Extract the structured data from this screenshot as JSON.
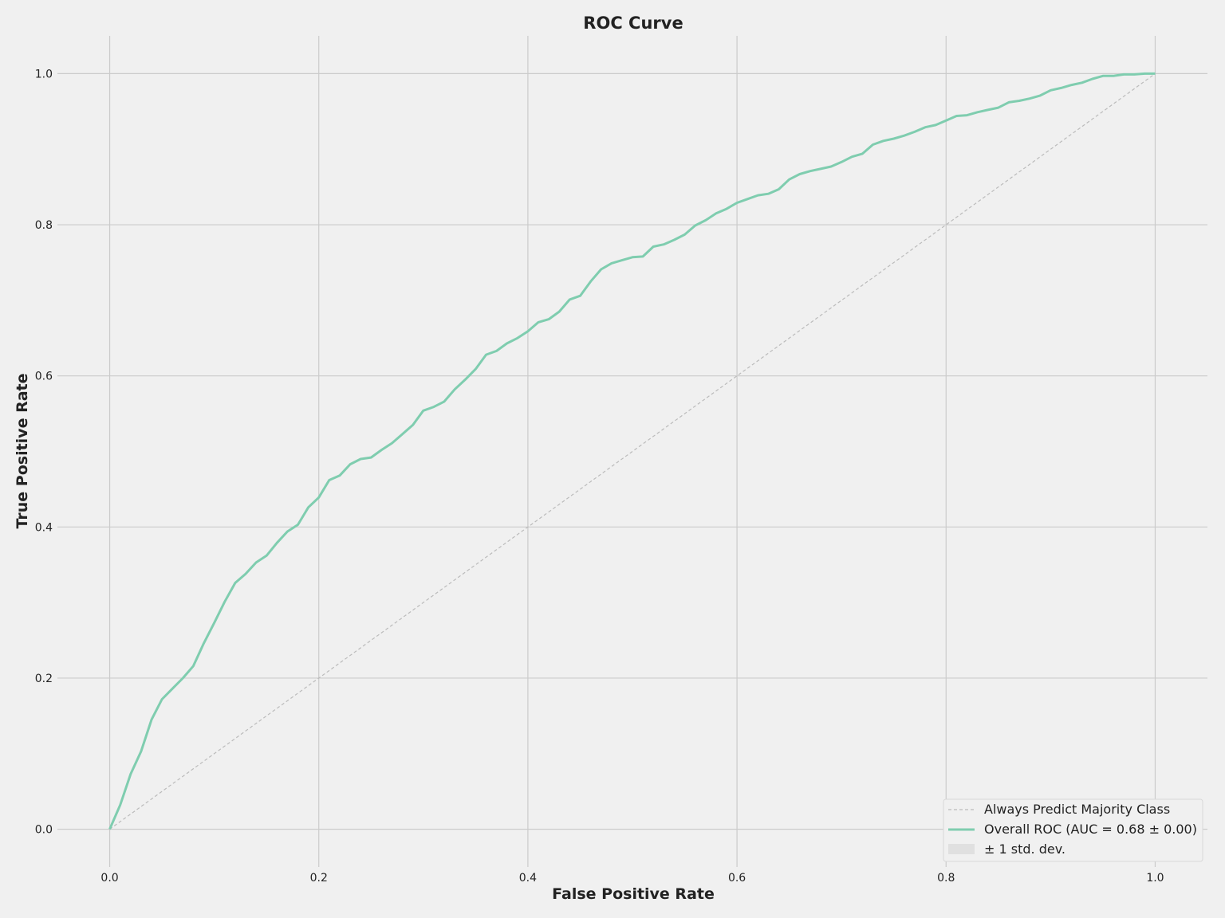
{
  "chart_data": {
    "type": "line",
    "title": "ROC Curve",
    "xlabel": "False Positive Rate",
    "ylabel": "True Positive Rate",
    "xlim": [
      -0.05,
      1.05
    ],
    "ylim": [
      -0.05,
      1.05
    ],
    "xticks": [
      0.0,
      0.2,
      0.4,
      0.6,
      0.8,
      1.0
    ],
    "yticks": [
      0.0,
      0.2,
      0.4,
      0.6,
      0.8,
      1.0
    ],
    "xtick_labels": [
      "0.0",
      "0.2",
      "0.4",
      "0.6",
      "0.8",
      "1.0"
    ],
    "ytick_labels": [
      "0.0",
      "0.2",
      "0.4",
      "0.6",
      "0.8",
      "1.0"
    ],
    "grid": true,
    "legend": {
      "placement": "lower-right"
    },
    "series": [
      {
        "name": "Always Predict Majority Class",
        "style": "dashed",
        "color": "#bbbbbb",
        "x": [
          0,
          1
        ],
        "y": [
          0,
          1
        ]
      },
      {
        "name": "Overall ROC (AUC = 0.68 ± 0.00)",
        "style": "solid",
        "color": "#7fcdaf",
        "x": [
          0.0,
          0.01,
          0.02,
          0.03,
          0.04,
          0.05,
          0.06,
          0.07,
          0.08,
          0.09,
          0.1,
          0.11,
          0.12,
          0.13,
          0.14,
          0.15,
          0.16,
          0.17,
          0.18,
          0.19,
          0.2,
          0.21,
          0.22,
          0.23,
          0.24,
          0.25,
          0.26,
          0.27,
          0.28,
          0.29,
          0.3,
          0.31,
          0.32,
          0.33,
          0.34,
          0.35,
          0.36,
          0.37,
          0.38,
          0.39,
          0.4,
          0.41,
          0.42,
          0.43,
          0.44,
          0.45,
          0.46,
          0.47,
          0.48,
          0.49,
          0.5,
          0.51,
          0.52,
          0.53,
          0.54,
          0.55,
          0.56,
          0.57,
          0.58,
          0.59,
          0.6,
          0.61,
          0.62,
          0.63,
          0.64,
          0.65,
          0.66,
          0.67,
          0.68,
          0.69,
          0.7,
          0.71,
          0.72,
          0.73,
          0.74,
          0.75,
          0.76,
          0.77,
          0.78,
          0.79,
          0.8,
          0.81,
          0.82,
          0.83,
          0.84,
          0.85,
          0.86,
          0.87,
          0.88,
          0.89,
          0.9,
          0.91,
          0.92,
          0.93,
          0.94,
          0.95,
          0.96,
          0.97,
          0.98,
          0.99,
          1.0
        ],
        "y": [
          0.0,
          0.032,
          0.073,
          0.103,
          0.145,
          0.172,
          0.186,
          0.2,
          0.216,
          0.246,
          0.273,
          0.301,
          0.326,
          0.338,
          0.353,
          0.362,
          0.379,
          0.394,
          0.403,
          0.426,
          0.439,
          0.462,
          0.468,
          0.483,
          0.49,
          0.492,
          0.502,
          0.511,
          0.523,
          0.535,
          0.554,
          0.559,
          0.566,
          0.582,
          0.595,
          0.609,
          0.628,
          0.633,
          0.643,
          0.65,
          0.659,
          0.671,
          0.675,
          0.685,
          0.701,
          0.706,
          0.725,
          0.741,
          0.749,
          0.753,
          0.757,
          0.758,
          0.771,
          0.774,
          0.78,
          0.787,
          0.799,
          0.806,
          0.815,
          0.821,
          0.829,
          0.834,
          0.839,
          0.841,
          0.847,
          0.86,
          0.867,
          0.871,
          0.874,
          0.877,
          0.883,
          0.89,
          0.894,
          0.906,
          0.911,
          0.914,
          0.918,
          0.923,
          0.929,
          0.932,
          0.938,
          0.944,
          0.945,
          0.949,
          0.952,
          0.955,
          0.962,
          0.964,
          0.967,
          0.971,
          0.978,
          0.981,
          0.985,
          0.988,
          0.993,
          0.997,
          0.997,
          0.999,
          0.999,
          1.0,
          1.0
        ]
      }
    ],
    "band": {
      "name": "± 1 std. dev.",
      "color": "#e0e0e0"
    }
  }
}
